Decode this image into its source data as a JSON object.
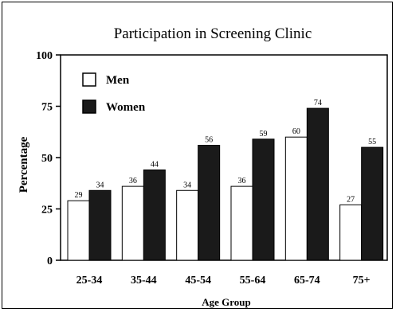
{
  "chart_data": {
    "type": "bar",
    "title": "Participation in Screening Clinic",
    "xlabel": "Age Group",
    "ylabel": "Percentage",
    "ylim": [
      0,
      100
    ],
    "yticks": [
      "0",
      "25",
      "50",
      "75",
      "100"
    ],
    "categories": [
      "25-34",
      "35-44",
      "45-54",
      "55-64",
      "65-74",
      "75+"
    ],
    "series": [
      {
        "name": "Men",
        "values": [
          29,
          36,
          34,
          36,
          60,
          27
        ],
        "color": "#ffffff"
      },
      {
        "name": "Women",
        "values": [
          34,
          44,
          56,
          59,
          74,
          55
        ],
        "color": "#1a1a1a"
      }
    ],
    "legend_placement": "top-left",
    "grid": false
  }
}
